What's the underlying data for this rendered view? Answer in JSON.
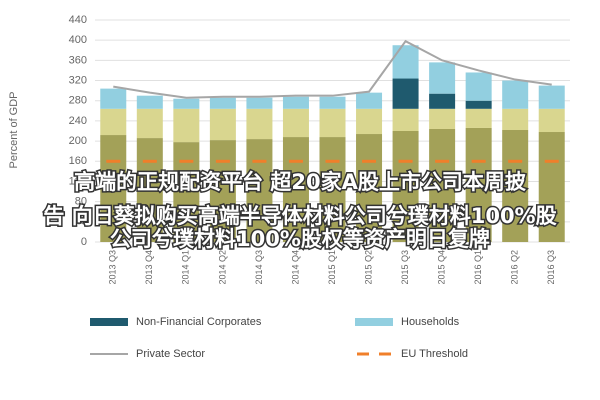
{
  "chart_data": {
    "type": "stacked-bar-line",
    "ylabel": "Percent of GDP",
    "categories": [
      "2013 Q3",
      "2013 Q4",
      "2014 Q1",
      "2014 Q2",
      "2014 Q3",
      "2014 Q4",
      "2015 Q1",
      "2015 Q2",
      "2015 Q3",
      "2015 Q4",
      "2016 Q1",
      "2016 Q2",
      "2016 Q3"
    ],
    "ylim": [
      0,
      440
    ],
    "yticks": [
      0,
      40,
      80,
      120,
      160,
      200,
      240,
      280,
      320,
      360,
      400,
      440
    ],
    "grid": true,
    "legend": "bottom",
    "series": [
      {
        "kind": "bar",
        "color": "#a3a158",
        "values": [
          212,
          206,
          198,
          202,
          204,
          208,
          208,
          214,
          220,
          224,
          226,
          222,
          218
        ]
      },
      {
        "kind": "bar",
        "color": "#d9d68f",
        "values": [
          52,
          58,
          66,
          62,
          60,
          56,
          56,
          50,
          44,
          40,
          38,
          42,
          46
        ]
      },
      {
        "kind": "bar",
        "name": "Non-Financial Corporates",
        "color": "#1f5a6e",
        "values": [
          0,
          0,
          0,
          0,
          0,
          0,
          0,
          0,
          60,
          30,
          16,
          0,
          0
        ]
      },
      {
        "kind": "bar",
        "name": "Households",
        "color": "#92cfe0",
        "values": [
          40,
          26,
          20,
          22,
          22,
          24,
          24,
          32,
          66,
          62,
          56,
          56,
          46
        ]
      },
      {
        "kind": "line",
        "name": "Private Sector",
        "color": "#a6a6a6",
        "values": [
          308,
          296,
          286,
          288,
          288,
          290,
          290,
          298,
          398,
          360,
          340,
          322,
          312
        ]
      },
      {
        "kind": "dash",
        "name": "EU Threshold",
        "color": "#f07f2a",
        "values": [
          160,
          160,
          160,
          160,
          160,
          160,
          160,
          160,
          160,
          160,
          160,
          160,
          160
        ]
      }
    ]
  },
  "overlay": {
    "lines": [
      "高端的正规配资平台 超20家A股上市公司本周披",
      "告 向日葵拟购买高端半导体材料公司兮璞材料100%股",
      "公司兮璞材料100%股权等资产明日复牌"
    ]
  }
}
